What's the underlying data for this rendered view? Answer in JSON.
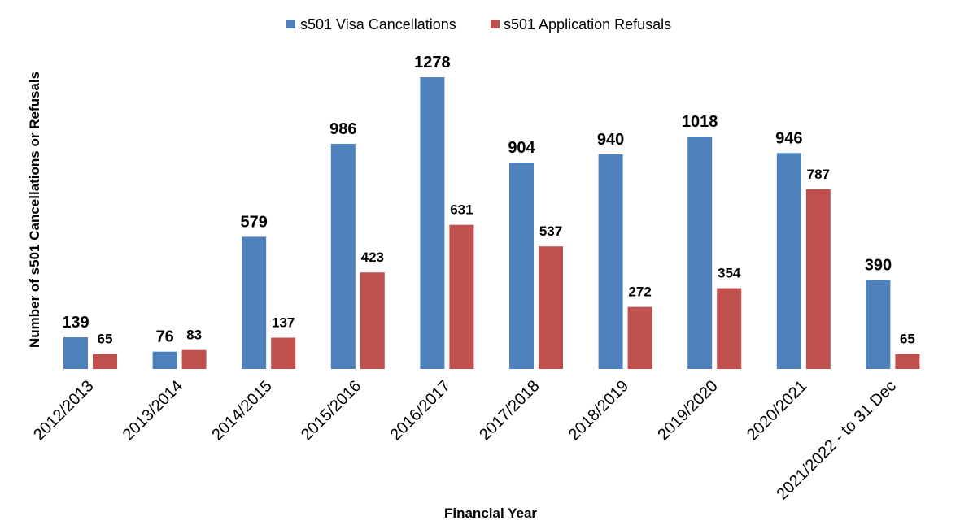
{
  "chart_data": {
    "type": "bar",
    "categories": [
      "2012/2013",
      "2013/2014",
      "2014/2015",
      "2015/2016",
      "2016/2017",
      "2017/2018",
      "2018/2019",
      "2019/2020",
      "2020/2021",
      "2021/2022 - to 31 Dec"
    ],
    "series": [
      {
        "name": "s501 Visa Cancellations",
        "color": "#4F81BD",
        "values": [
          139,
          76,
          579,
          986,
          1278,
          904,
          940,
          1018,
          946,
          390
        ]
      },
      {
        "name": "s501 Application Refusals",
        "color": "#C0504D",
        "values": [
          65,
          83,
          137,
          423,
          631,
          537,
          272,
          354,
          787,
          65
        ]
      }
    ],
    "title": "",
    "xlabel": "Financial Year",
    "ylabel": "Number of s501 Cancellations or Refusals",
    "ylim": [
      0,
      1278
    ],
    "grid": false,
    "legend": "top-center",
    "data_labels": true
  }
}
